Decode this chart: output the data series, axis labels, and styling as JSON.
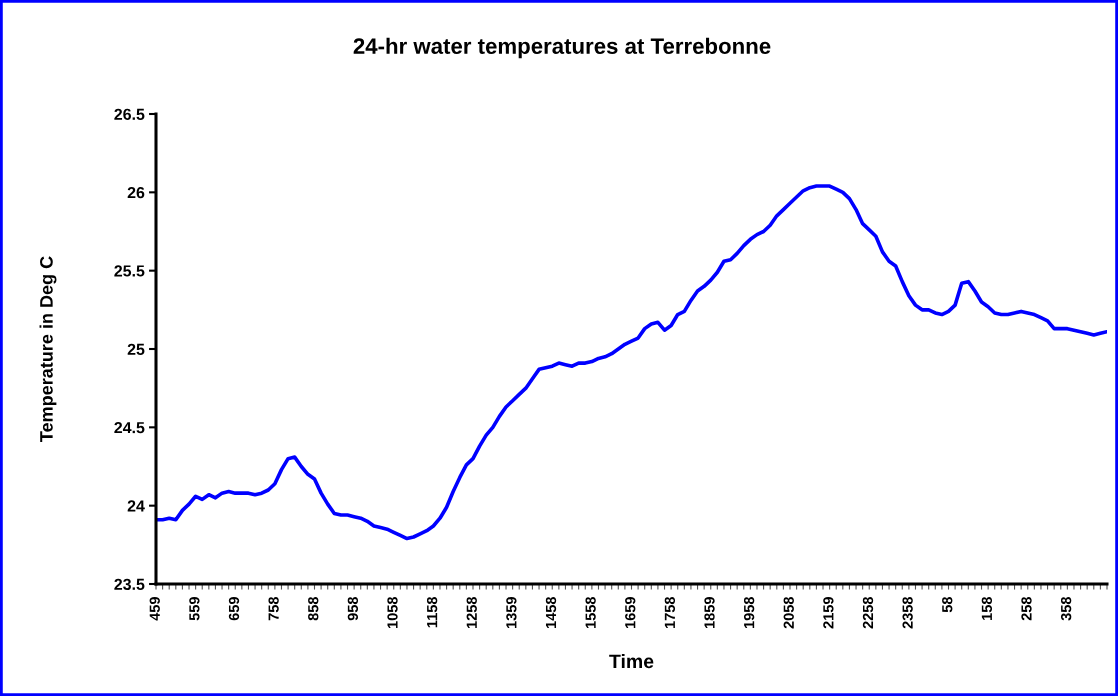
{
  "chart_data": {
    "type": "line",
    "title": "24-hr water temperatures at Terrebonne",
    "xlabel": "Time",
    "ylabel": "Temperature in Deg C",
    "categories": [
      "459",
      null,
      null,
      null,
      null,
      null,
      "559",
      null,
      null,
      null,
      null,
      null,
      "659",
      null,
      null,
      null,
      null,
      null,
      "758",
      null,
      null,
      null,
      null,
      null,
      "858",
      null,
      null,
      null,
      null,
      null,
      "958",
      null,
      null,
      null,
      null,
      null,
      "1058",
      null,
      null,
      null,
      null,
      null,
      "1158",
      null,
      null,
      null,
      null,
      null,
      "1258",
      null,
      null,
      null,
      null,
      null,
      "1359",
      null,
      null,
      null,
      null,
      null,
      "1458",
      null,
      null,
      null,
      null,
      null,
      "1558",
      null,
      null,
      null,
      null,
      null,
      "1659",
      null,
      null,
      null,
      null,
      null,
      "1758",
      null,
      null,
      null,
      null,
      null,
      "1859",
      null,
      null,
      null,
      null,
      null,
      "1958",
      null,
      null,
      null,
      null,
      null,
      "2058",
      null,
      null,
      null,
      null,
      null,
      "2159",
      null,
      null,
      null,
      null,
      null,
      "2258",
      null,
      null,
      null,
      null,
      null,
      "2358",
      null,
      null,
      null,
      null,
      null,
      "58",
      null,
      null,
      null,
      null,
      null,
      "158",
      null,
      null,
      null,
      null,
      null,
      "258",
      null,
      null,
      null,
      null,
      null,
      "358",
      null,
      null,
      null,
      null,
      null,
      null
    ],
    "series": [
      {
        "color": "#0000ff",
        "line_style": "solid",
        "values": [
          23.91,
          23.91,
          23.92,
          23.91,
          23.97,
          24.01,
          24.06,
          24.04,
          24.07,
          24.05,
          24.08,
          24.09,
          24.08,
          24.08,
          24.08,
          24.07,
          24.08,
          24.1,
          24.14,
          24.23,
          24.3,
          24.31,
          24.25,
          24.2,
          24.17,
          24.08,
          24.01,
          23.95,
          23.94,
          23.94,
          23.93,
          23.92,
          23.9,
          23.87,
          23.86,
          23.85,
          23.83,
          23.81,
          23.79,
          23.8,
          23.82,
          23.84,
          23.87,
          23.92,
          23.99,
          24.09,
          24.18,
          24.26,
          24.3,
          24.38,
          24.45,
          24.5,
          24.57,
          24.63,
          24.67,
          24.71,
          24.75,
          24.81,
          24.87,
          24.88,
          24.89,
          24.91,
          24.9,
          24.89,
          24.91,
          24.91,
          24.92,
          24.94,
          24.95,
          24.97,
          25.0,
          25.03,
          25.05,
          25.07,
          25.13,
          25.16,
          25.17,
          25.12,
          25.15,
          25.22,
          25.24,
          25.31,
          25.37,
          25.4,
          25.44,
          25.49,
          25.56,
          25.57,
          25.61,
          25.66,
          25.7,
          25.73,
          25.75,
          25.79,
          25.85,
          25.89,
          25.93,
          25.97,
          26.01,
          26.03,
          26.04,
          26.04,
          26.04,
          26.02,
          26.0,
          25.96,
          25.89,
          25.8,
          25.76,
          25.72,
          25.62,
          25.56,
          25.53,
          25.43,
          25.34,
          25.28,
          25.25,
          25.25,
          25.23,
          25.22,
          25.24,
          25.28,
          25.42,
          25.43,
          25.37,
          25.3,
          25.27,
          25.23,
          25.22,
          25.22,
          25.23,
          25.24,
          25.23,
          25.22,
          25.2,
          25.18,
          25.13,
          25.13,
          25.13,
          25.12,
          25.11,
          25.1,
          25.09,
          25.1,
          25.11
        ]
      }
    ],
    "ylim": [
      23.5,
      26.5
    ],
    "yticks": [
      23.5,
      24,
      24.5,
      25,
      25.5,
      26,
      26.5
    ]
  }
}
